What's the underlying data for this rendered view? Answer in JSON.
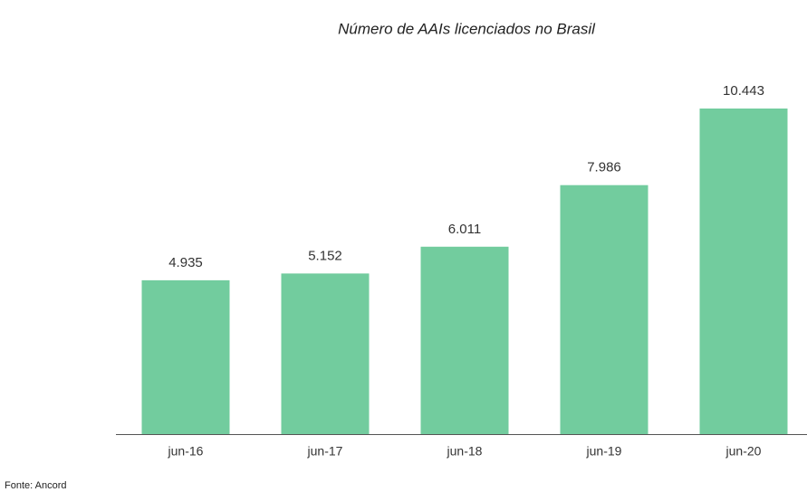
{
  "chart_data": {
    "type": "bar",
    "title": "Número de AAIs licenciados no Brasil",
    "categories": [
      "jun-16",
      "jun-17",
      "jun-18",
      "jun-19",
      "jun-20"
    ],
    "values": [
      4935,
      5152,
      6011,
      7986,
      10443
    ],
    "value_labels": [
      "4.935",
      "5.152",
      "6.011",
      "7.986",
      "10.443"
    ],
    "color": "#72cc9e",
    "source": "Fonte: Ancord"
  }
}
